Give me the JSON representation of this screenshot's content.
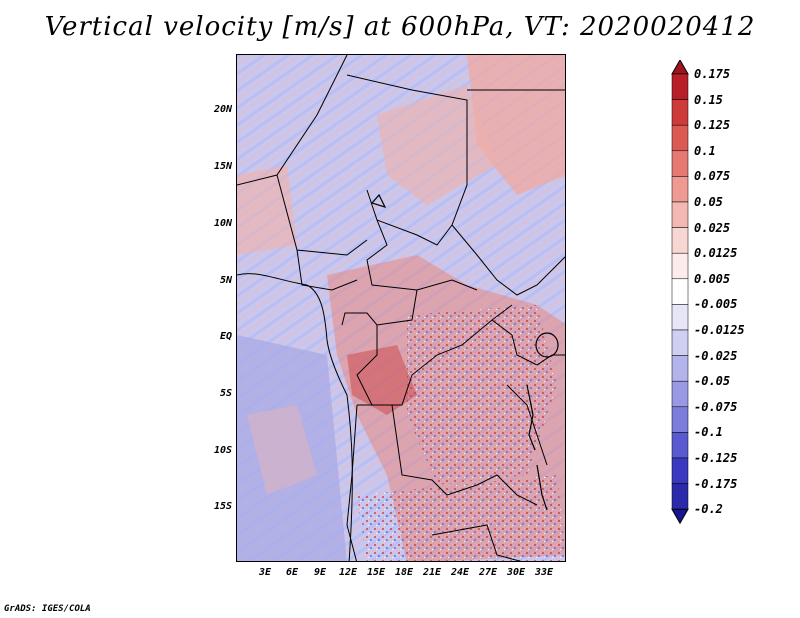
{
  "title": "Vertical velocity [m/s] at 600hPa, VT: 2020020412",
  "footer": "GrADS: IGES/COLA",
  "axes": {
    "y_labels": [
      "20N",
      "15N",
      "10N",
      "5N",
      "EQ",
      "5S",
      "10S",
      "15S"
    ],
    "x_labels": [
      "3E",
      "6E",
      "9E",
      "12E",
      "15E",
      "18E",
      "21E",
      "24E",
      "27E",
      "30E",
      "33E"
    ]
  },
  "legend": {
    "levels": [
      "0.175",
      "0.15",
      "0.125",
      "0.1",
      "0.075",
      "0.05",
      "0.025",
      "0.0125",
      "0.005",
      "-0.005",
      "-0.0125",
      "-0.025",
      "-0.05",
      "-0.075",
      "-0.1",
      "-0.125",
      "-0.175",
      "-0.2"
    ],
    "colors": [
      "#a0141e",
      "#b81e28",
      "#cc3a3a",
      "#dc5a54",
      "#e67a72",
      "#ee9a92",
      "#f4b8b2",
      "#f8d6d2",
      "#fcecea",
      "#ffffff",
      "#e6e6f8",
      "#cfcff2",
      "#b4b4ec",
      "#9a9ae4",
      "#7c7cdc",
      "#5a5ad0",
      "#3a3ac0",
      "#2a2aaa",
      "#161690"
    ]
  }
}
